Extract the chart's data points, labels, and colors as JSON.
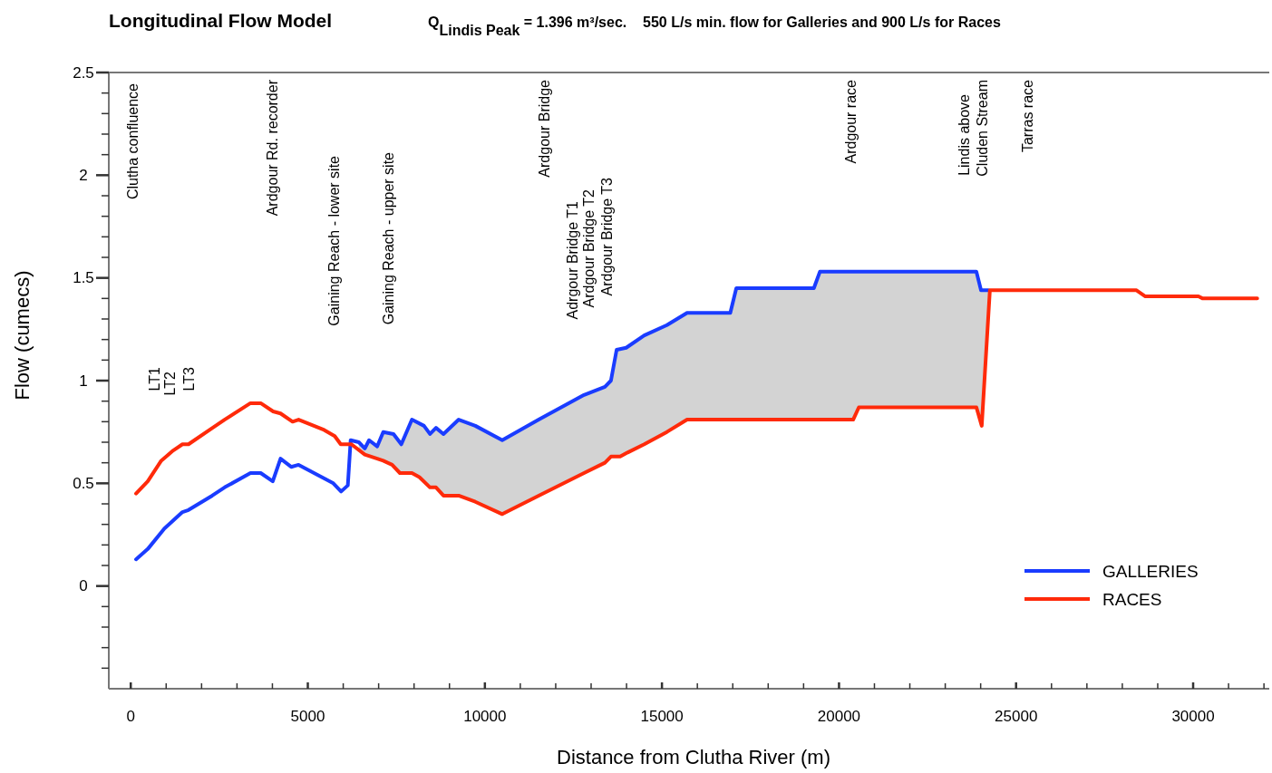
{
  "chart_data": {
    "type": "line",
    "title": "Longitudinal Flow Model",
    "subtitle": "Q$_{Lindis Peak}$ = 1.396 m³/sec.    550 L/s min. flow for Galleries and 900 L/s for Races",
    "xlabel": "Distance from Clutha River (m)",
    "ylabel": "Flow (cumecs)",
    "xlim": [
      -620,
      32150
    ],
    "ylim": [
      -0.5,
      2.5
    ],
    "xticks": [
      0,
      {
        "value": 1000,
        "label": null
      },
      {
        "value": 2000,
        "label": null
      },
      {
        "value": 3000,
        "label": null
      },
      {
        "value": 4000,
        "label": null
      },
      5000,
      {
        "value": 6000,
        "label": null
      },
      {
        "value": 7000,
        "label": null
      },
      {
        "value": 8000,
        "label": null
      },
      {
        "value": 9000,
        "label": null
      },
      10000,
      {
        "value": 11000,
        "label": null
      },
      {
        "value": 12000,
        "label": null
      },
      {
        "value": 13000,
        "label": null
      },
      {
        "value": 14000,
        "label": null
      },
      15000,
      {
        "value": 16000,
        "label": null
      },
      {
        "value": 17000,
        "label": null
      },
      {
        "value": 18000,
        "label": null
      },
      {
        "value": 19000,
        "label": null
      },
      20000,
      {
        "value": 21000,
        "label": null
      },
      {
        "value": 22000,
        "label": null
      },
      {
        "value": 23000,
        "label": null
      },
      {
        "value": 24000,
        "label": null
      },
      25000,
      {
        "value": 26000,
        "label": null
      },
      {
        "value": 27000,
        "label": null
      },
      {
        "value": 28000,
        "label": null
      },
      {
        "value": 29000,
        "label": null
      },
      30000,
      {
        "value": 31000,
        "label": null
      },
      {
        "value": 32000,
        "label": null
      }
    ],
    "yticks": [
      {
        "value": -0.4,
        "label": null
      },
      {
        "value": -0.3,
        "label": null
      },
      {
        "value": -0.2,
        "label": null
      },
      {
        "value": -0.1,
        "label": null
      },
      0,
      {
        "value": 0.1,
        "label": null
      },
      {
        "value": 0.2,
        "label": null
      },
      {
        "value": 0.3,
        "label": null
      },
      {
        "value": 0.4,
        "label": null
      },
      0.5,
      {
        "value": 0.6,
        "label": null
      },
      {
        "value": 0.7,
        "label": null
      },
      {
        "value": 0.8,
        "label": null
      },
      {
        "value": 0.9,
        "label": null
      },
      1,
      {
        "value": 1.1,
        "label": null
      },
      {
        "value": 1.2,
        "label": null
      },
      {
        "value": 1.3,
        "label": null
      },
      {
        "value": 1.4,
        "label": null
      },
      1.5,
      {
        "value": 1.6,
        "label": null
      },
      {
        "value": 1.7,
        "label": null
      },
      {
        "value": 1.8,
        "label": null
      },
      {
        "value": 1.9,
        "label": null
      },
      2,
      {
        "value": 2.1,
        "label": null
      },
      {
        "value": 2.2,
        "label": null
      },
      {
        "value": 2.3,
        "label": null
      },
      {
        "value": 2.4,
        "label": null
      },
      2.5
    ],
    "grid": false,
    "legend": "bottom right",
    "marker": "none",
    "line_style": "solid",
    "series": [
      {
        "name": "GALLERIES",
        "color": "#1a3cff",
        "x": [
          150,
          480,
          950,
          1460,
          1630,
          2300,
          2650,
          3380,
          3670,
          4010,
          4230,
          4530,
          4740,
          5720,
          5940,
          6130,
          6210,
          6440,
          6610,
          6730,
          6960,
          7130,
          7420,
          7640,
          7940,
          8280,
          8450,
          8620,
          8830,
          9260,
          9730,
          10490,
          11520,
          12800,
          13390,
          13560,
          13720,
          13990,
          14500,
          15140,
          15710,
          16930,
          17100,
          19290,
          19460,
          20400,
          20560,
          23880,
          24010,
          24220
        ],
        "values": [
          0.13,
          0.18,
          0.28,
          0.36,
          0.37,
          0.44,
          0.48,
          0.55,
          0.55,
          0.51,
          0.62,
          0.58,
          0.59,
          0.5,
          0.46,
          0.49,
          0.71,
          0.7,
          0.67,
          0.71,
          0.68,
          0.75,
          0.74,
          0.69,
          0.81,
          0.78,
          0.74,
          0.77,
          0.74,
          0.81,
          0.78,
          0.71,
          0.81,
          0.93,
          0.97,
          1.0,
          1.15,
          1.16,
          1.22,
          1.27,
          1.33,
          1.33,
          1.45,
          1.45,
          1.53,
          1.53,
          1.53,
          1.53,
          1.44,
          1.44
        ],
        "lower": [
          null,
          null,
          null,
          null,
          null,
          null,
          null,
          null,
          null,
          null,
          null,
          null,
          null,
          null,
          null,
          null,
          null,
          0.66,
          0.64,
          0.63,
          0.62,
          0.61,
          0.59,
          0.55,
          0.55,
          0.51,
          0.48,
          0.48,
          0.44,
          0.44,
          0.41,
          0.34,
          0.44,
          0.55,
          0.6,
          0.63,
          0.63,
          0.65,
          0.69,
          0.75,
          0.81,
          0.81,
          0.81,
          0.81,
          0.81,
          0.81,
          0.87,
          0.87,
          0.78,
          1.25
        ],
        "upper": [
          null,
          null,
          null,
          null,
          null,
          null,
          null,
          null,
          null,
          null,
          null,
          null,
          null,
          null,
          null,
          null,
          null,
          0.7,
          0.67,
          0.71,
          0.68,
          0.75,
          0.74,
          0.69,
          0.81,
          0.78,
          0.74,
          0.77,
          0.74,
          0.81,
          0.78,
          0.71,
          0.81,
          0.93,
          0.97,
          1.0,
          1.15,
          1.16,
          1.22,
          1.27,
          1.33,
          1.33,
          1.45,
          1.45,
          1.53,
          1.53,
          1.53,
          1.53,
          1.44,
          1.44
        ]
      },
      {
        "name": "RACES",
        "color": "#ff2a0a",
        "x": [
          150,
          480,
          860,
          1200,
          1460,
          1630,
          2310,
          2650,
          3380,
          3670,
          4020,
          4230,
          4570,
          4740,
          5460,
          5760,
          5930,
          6230,
          6610,
          6960,
          7130,
          7380,
          7600,
          7940,
          8150,
          8450,
          8620,
          8830,
          9260,
          9730,
          10490,
          11520,
          12800,
          13390,
          13560,
          13820,
          14030,
          14500,
          15140,
          15710,
          20400,
          20560,
          23880,
          24030,
          24260,
          28400,
          28650,
          30150,
          30270,
          30610,
          31810
        ],
        "values": [
          0.45,
          0.51,
          0.61,
          0.66,
          0.69,
          0.69,
          0.77,
          0.81,
          0.89,
          0.89,
          0.85,
          0.84,
          0.8,
          0.81,
          0.76,
          0.73,
          0.69,
          0.69,
          0.64,
          0.62,
          0.61,
          0.59,
          0.55,
          0.55,
          0.53,
          0.48,
          0.48,
          0.44,
          0.44,
          0.41,
          0.35,
          0.44,
          0.55,
          0.6,
          0.63,
          0.63,
          0.65,
          0.69,
          0.75,
          0.81,
          0.81,
          0.87,
          0.87,
          0.78,
          1.44,
          1.44,
          1.41,
          1.41,
          1.4,
          1.4,
          1.4
        ]
      }
    ],
    "annotations": [
      "Clutha confluence",
      "Ardgour Rd. recorder",
      "Gaining Reach - lower site",
      "Gaining Reach - upper site",
      "Ardgour Bridge",
      "Adrgour Bridge T1",
      "Ardgour Bridge T2",
      "Ardgour Bridge T3",
      "Ardgour race",
      "Lindis above",
      "Cluden Stream",
      "Tarras race",
      "LT1",
      "LT2",
      "LT3"
    ]
  }
}
